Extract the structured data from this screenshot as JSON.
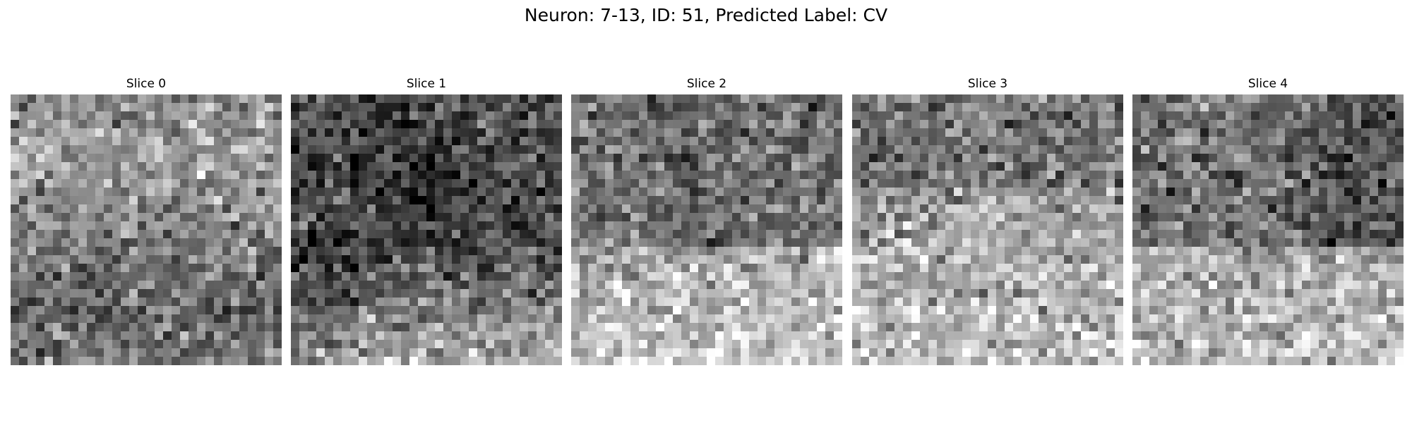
{
  "figure": {
    "title": "Neuron: 7-13, ID: 51, Predicted Label: CV"
  },
  "slices": [
    {
      "title": "Slice 0"
    },
    {
      "title": "Slice 1"
    },
    {
      "title": "Slice 2"
    },
    {
      "title": "Slice 3"
    },
    {
      "title": "Slice 4"
    }
  ],
  "colormap": "grayscale"
}
